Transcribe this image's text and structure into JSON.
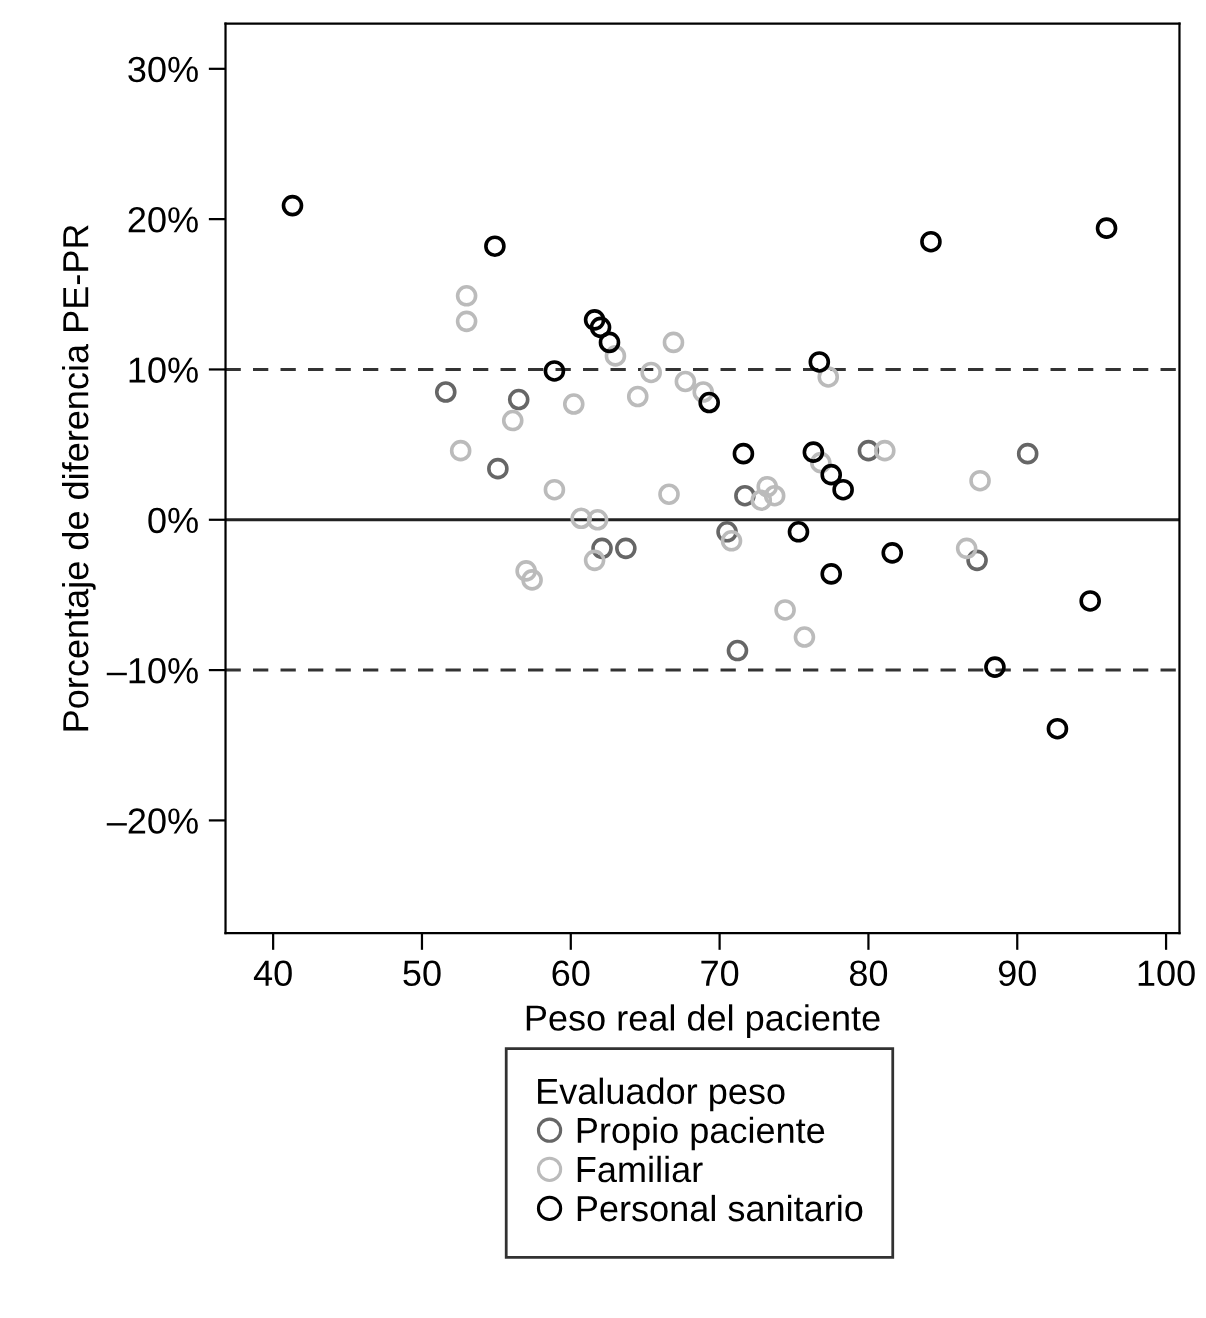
{
  "chart_data": {
    "type": "scatter",
    "xlabel": "Peso real del paciente",
    "ylabel": "Porcentaje de diferencia PE-PR",
    "legend_title": "Evaluador peso",
    "legend": "bottom",
    "marker": "circle",
    "grid": false,
    "xlim": [
      36.8,
      100.9
    ],
    "xticks": [
      40,
      50,
      60,
      70,
      80,
      90,
      100
    ],
    "ylim": [
      -27.5,
      33
    ],
    "yticks": [
      {
        "value": 30,
        "label": "30%"
      },
      {
        "value": 20,
        "label": "20%"
      },
      {
        "value": 10,
        "label": "10%"
      },
      {
        "value": 0,
        "label": "0%"
      },
      {
        "value": -10,
        "label": "–10%"
      },
      {
        "value": -20,
        "label": "–20%"
      }
    ],
    "ref_lines": [
      {
        "axis": "y",
        "value": 10,
        "line_style": "dashed",
        "color": "#333333"
      },
      {
        "axis": "y",
        "value": 0,
        "line_style": "solid",
        "color": "#222222"
      },
      {
        "axis": "y",
        "value": -10,
        "line_style": "dashed",
        "color": "#333333"
      }
    ],
    "series": [
      {
        "name": "Propio paciente",
        "color": "#666666",
        "x": [
          51.6,
          56.5,
          55.1,
          70.5,
          71.7,
          62.1,
          63.7,
          80.0,
          90.7,
          87.3,
          71.2
        ],
        "values": [
          8.5,
          8.0,
          3.4,
          -0.8,
          1.6,
          -1.9,
          -1.9,
          4.6,
          4.4,
          -2.7,
          -8.7
        ]
      },
      {
        "name": "Familiar",
        "color": "#bbbbbb",
        "x": [
          53.0,
          53.0,
          56.1,
          52.6,
          58.9,
          63.0,
          66.9,
          65.4,
          67.7,
          68.9,
          64.5,
          60.2,
          77.3,
          76.8,
          66.6,
          72.8,
          73.2,
          73.7,
          60.7,
          61.8,
          70.8,
          61.6,
          57.0,
          57.4,
          74.4,
          75.7,
          81.1,
          87.5,
          86.6
        ],
        "values": [
          14.9,
          13.2,
          6.6,
          4.6,
          2.0,
          10.9,
          11.8,
          9.8,
          9.2,
          8.5,
          8.2,
          7.7,
          9.5,
          3.8,
          1.7,
          1.3,
          2.2,
          1.6,
          0.1,
          0.0,
          -1.4,
          -2.7,
          -3.4,
          -4.0,
          -6.0,
          -7.8,
          4.6,
          2.6,
          -1.9
        ]
      },
      {
        "name": "Personal sanitario",
        "color": "#000000",
        "x": [
          41.3,
          54.9,
          58.9,
          61.6,
          62.0,
          62.6,
          69.3,
          76.7,
          71.6,
          76.3,
          77.5,
          78.3,
          75.3,
          77.5,
          81.6,
          84.2,
          96.0,
          94.9,
          88.5,
          92.7
        ],
        "values": [
          20.9,
          18.2,
          9.9,
          13.3,
          12.8,
          11.8,
          7.8,
          10.5,
          4.4,
          4.5,
          3.0,
          2.0,
          -0.8,
          -3.6,
          -2.2,
          18.5,
          19.4,
          -5.4,
          -9.8,
          -13.9
        ]
      }
    ]
  }
}
